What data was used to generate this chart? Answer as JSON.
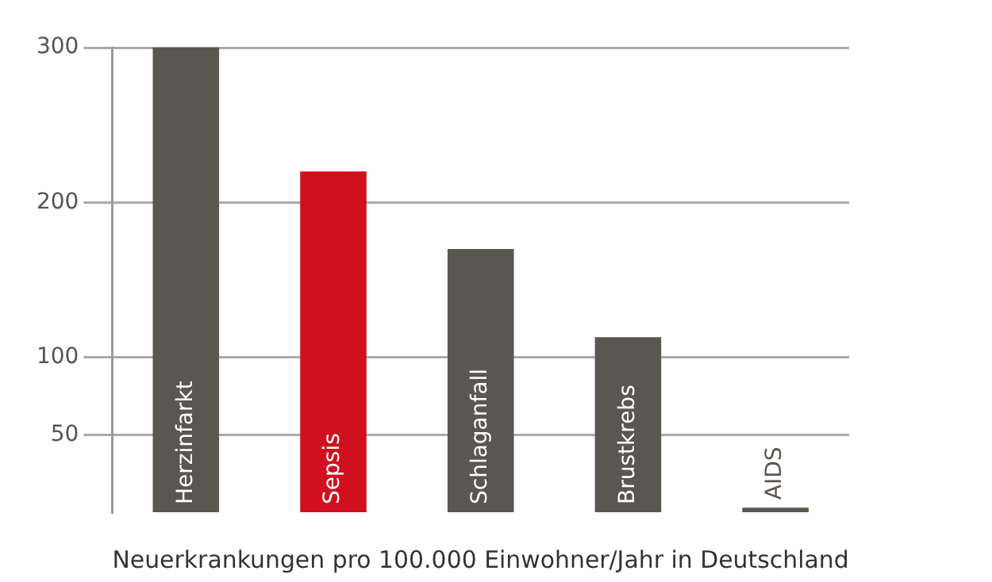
{
  "chart_data": {
    "type": "bar",
    "xlabel": "Neuerkrankungen pro 100.000 Einwohner/Jahr in Deutschland",
    "categories": [
      "Herzinfarkt",
      "Sepsis",
      "Schlaganfall",
      "Brustkrebs",
      "AIDS"
    ],
    "values": [
      300,
      220,
      170,
      113,
      3
    ],
    "colors": [
      "#5a5650",
      "#d0101e",
      "#5a5650",
      "#5a5650",
      "#5a5650"
    ],
    "ylim": [
      0,
      300
    ],
    "yticks": [
      50,
      100,
      200,
      300
    ],
    "grid": "y",
    "legend": false
  }
}
